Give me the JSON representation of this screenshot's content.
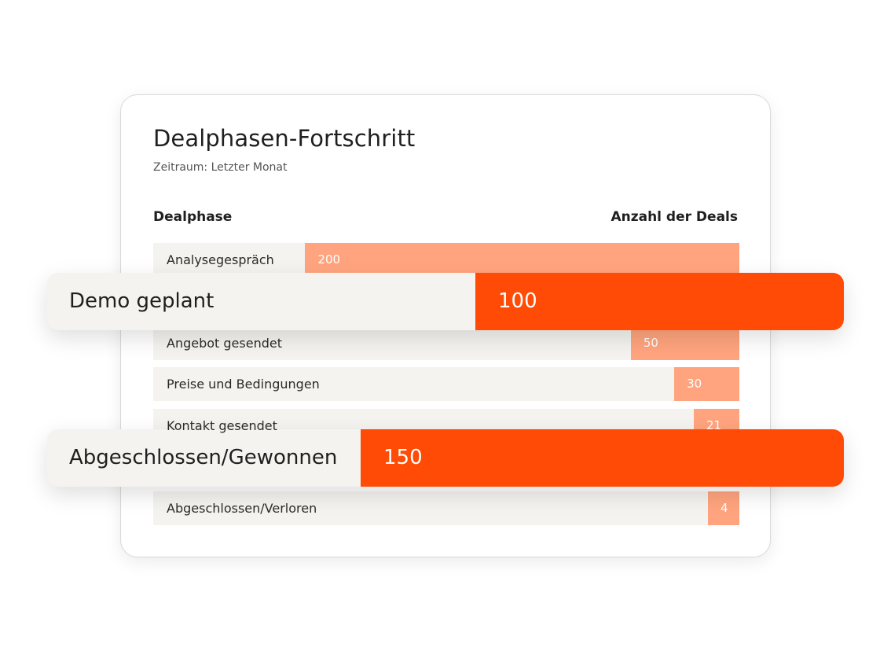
{
  "chart_data": {
    "type": "bar",
    "orientation": "horizontal",
    "title": "Dealphasen-Fortschritt",
    "subtitle": "Zeitraum: Letzter Monat",
    "xlabel": "Anzahl der Deals",
    "ylabel": "Dealphase",
    "categories": [
      "Analysegespräch",
      "Angebot gesendet",
      "Preise und Bedingungen",
      "Kontakt gesendet",
      "Abgeschlossen/Verloren"
    ],
    "values": [
      200,
      50,
      30,
      21,
      4
    ],
    "xlim": [
      0,
      270
    ],
    "highlights": [
      {
        "category": "Demo geplant",
        "value": 100
      },
      {
        "category": "Abgeschlossen/Gewonnen",
        "value": 150
      }
    ],
    "colors": {
      "bar": "#ffa47e",
      "highlight": "#ff4b05",
      "track": "#f4f3ef"
    }
  }
}
